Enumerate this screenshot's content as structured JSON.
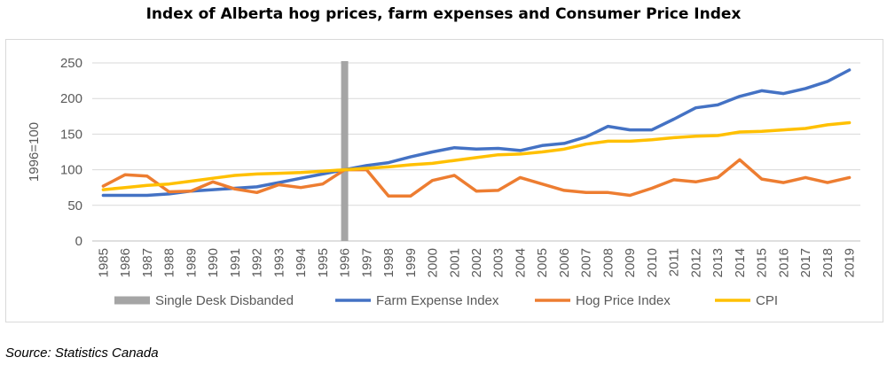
{
  "chart_data": {
    "type": "line",
    "title": "Index of Alberta hog prices, farm expenses and Consumer Price Index",
    "ylabel": "1996=100",
    "xlabel": "",
    "ylim": [
      0,
      250
    ],
    "yticks": [
      0,
      50,
      100,
      150,
      200,
      250
    ],
    "grid": true,
    "legend_position": "bottom",
    "x": [
      1985,
      1986,
      1987,
      1988,
      1989,
      1990,
      1991,
      1992,
      1993,
      1994,
      1995,
      1996,
      1997,
      1998,
      1999,
      2000,
      2001,
      2002,
      2003,
      2004,
      2005,
      2006,
      2007,
      2008,
      2009,
      2010,
      2011,
      2012,
      2013,
      2014,
      2015,
      2016,
      2017,
      2018,
      2019
    ],
    "marker": {
      "name": "Single Desk Disbanded",
      "x": 1996,
      "color": "#a5a5a5"
    },
    "series": [
      {
        "name": "Farm Expense Index",
        "color": "#4472c4",
        "values": [
          64,
          64,
          64,
          66,
          70,
          72,
          74,
          76,
          82,
          88,
          94,
          100,
          106,
          110,
          118,
          125,
          131,
          129,
          130,
          127,
          134,
          137,
          146,
          161,
          156,
          156,
          171,
          187,
          191,
          203,
          211,
          207,
          214,
          224,
          240
        ]
      },
      {
        "name": "Hog Price Index",
        "color": "#ed7d31",
        "values": [
          77,
          93,
          91,
          69,
          70,
          83,
          73,
          68,
          79,
          75,
          80,
          100,
          100,
          63,
          63,
          85,
          92,
          70,
          71,
          89,
          80,
          71,
          68,
          68,
          64,
          74,
          86,
          83,
          89,
          114,
          87,
          82,
          89,
          82,
          89
        ]
      },
      {
        "name": "CPI",
        "color": "#ffc000",
        "values": [
          72,
          75,
          78,
          80,
          84,
          88,
          92,
          94,
          95,
          96,
          98,
          100,
          102,
          104,
          107,
          109,
          113,
          117,
          121,
          122,
          125,
          129,
          136,
          140,
          140,
          142,
          145,
          147,
          148,
          153,
          154,
          156,
          158,
          163,
          166
        ]
      }
    ]
  },
  "source": "Source: Statistics Canada"
}
